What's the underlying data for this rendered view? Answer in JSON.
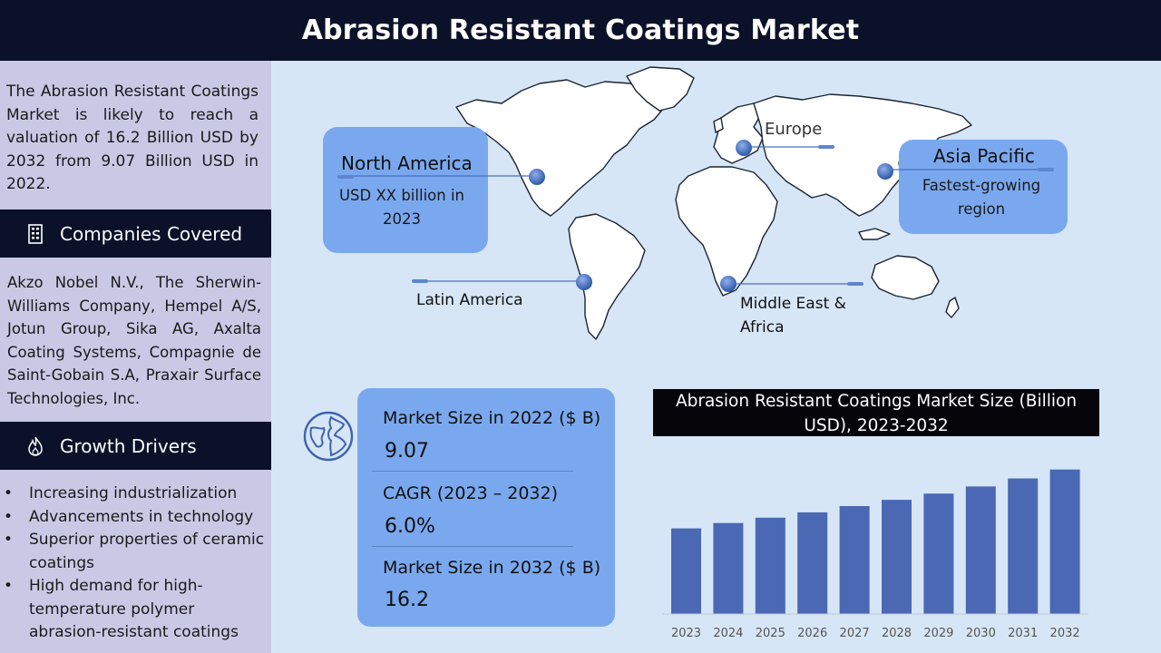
{
  "title": "Abrasion Resistant Coatings Market",
  "sidebar": {
    "intro": "The Abrasion Resistant Coatings Market is likely to reach a valuation of 16.2 Billion USD by 2032 from 9.07 Billion USD in 2022.",
    "companies_header": "Companies Covered",
    "companies": "Akzo Nobel N.V., The Sherwin-Williams Company, Hempel A/S, Jotun Group, Sika AG, Axalta Coating Systems, Compagnie de Saint-Gobain S.A, Praxair Surface Technologies, Inc.",
    "drivers_header": "Growth Drivers",
    "drivers": [
      "Increasing industrialization",
      "Advancements in technology",
      "Superior properties of ceramic coatings",
      "High demand for high-temperature polymer abrasion-resistant coatings"
    ],
    "companies_icon": "building-icon",
    "drivers_icon": "flame-icon"
  },
  "map": {
    "north_america": {
      "title": "North America",
      "subtitle": "USD XX billion in 2023"
    },
    "europe": {
      "title": "Europe"
    },
    "asia_pacific": {
      "title": "Asia Pacific",
      "subtitle": "Fastest-growing region"
    },
    "latin_america": {
      "title": "Latin America"
    },
    "mea": {
      "title": "Middle East & Africa"
    },
    "box_color": "#7aa8ef",
    "marker_color": "#4472c4"
  },
  "stats": {
    "icon": "globe-icon",
    "items": [
      {
        "label": "Market Size in 2022 ($ B)",
        "value": "9.07"
      },
      {
        "label": "CAGR (2023 – 2032)",
        "value": "6.0%"
      },
      {
        "label": "Market Size in 2032 ($ B)",
        "value": "16.2"
      }
    ]
  },
  "chart_data": {
    "type": "bar",
    "title": "Abrasion Resistant Coatings Market Size (Billion USD), 2023-2032",
    "categories": [
      "2023",
      "2024",
      "2025",
      "2026",
      "2027",
      "2028",
      "2029",
      "2030",
      "2031",
      "2032"
    ],
    "values": [
      9.6,
      10.2,
      10.8,
      11.4,
      12.1,
      12.8,
      13.5,
      14.3,
      15.2,
      16.2
    ],
    "ylim": [
      0,
      18
    ],
    "bar_color": "#4a68b4",
    "grid": false
  }
}
